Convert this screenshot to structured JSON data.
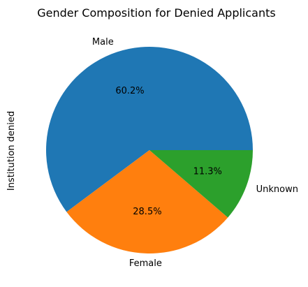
{
  "chart_data": {
    "type": "pie",
    "title": "Gender Composition for Denied Applicants",
    "ylabel": "Institution denied",
    "slices": [
      {
        "label": "Male",
        "value": 60.2,
        "pct_label": "60.2%",
        "color": "#1f77b4"
      },
      {
        "label": "Female",
        "value": 28.5,
        "pct_label": "28.5%",
        "color": "#ff7f0e"
      },
      {
        "label": "Unknown",
        "value": 11.3,
        "pct_label": "11.3%",
        "color": "#2ca02c"
      }
    ],
    "start_angle_deg": 0,
    "direction": "counterclockwise"
  }
}
